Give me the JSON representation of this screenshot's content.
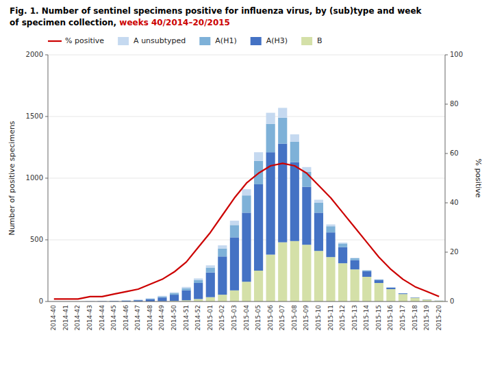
{
  "chart_data": {
    "type": "bar",
    "title": [
      "Fig. 1. Number of sentinel specimens positive for influenza virus, by (sub)type and week",
      "of specimen collection, ",
      "weeks 40/2014–20/2015"
    ],
    "categories": [
      "2014-40",
      "2014-41",
      "2014-42",
      "2014-43",
      "2014-44",
      "2014-45",
      "2014-46",
      "2014-47",
      "2014-48",
      "2014-49",
      "2014-50",
      "2014-51",
      "2014-52",
      "2015-01",
      "2015-02",
      "2015-03",
      "2015-04",
      "2015-05",
      "2015-06",
      "2015-07",
      "2015-08",
      "2015-09",
      "2015-10",
      "2015-11",
      "2015-12",
      "2015-13",
      "2015-14",
      "2015-15",
      "2015-16",
      "2015-17",
      "2015-18",
      "2015-19",
      "2015-20"
    ],
    "series": [
      {
        "name": "% positive",
        "type": "line",
        "axis": "y2",
        "color": "#cc0000",
        "values": [
          1,
          1,
          1,
          2,
          2,
          3,
          4,
          5,
          7,
          9,
          12,
          16,
          22,
          28,
          35,
          42,
          48,
          52,
          55,
          56,
          55,
          52,
          47,
          42,
          36,
          30,
          24,
          18,
          13,
          9,
          6,
          4,
          2
        ]
      },
      {
        "name": "A unsubtyped",
        "type": "bar",
        "color": "#c5d9f0",
        "values": [
          0,
          0,
          0,
          0,
          0,
          0,
          1,
          2,
          4,
          6,
          8,
          10,
          12,
          18,
          25,
          35,
          50,
          70,
          90,
          80,
          60,
          40,
          25,
          15,
          8,
          4,
          2,
          1,
          0,
          0,
          0,
          0,
          0
        ]
      },
      {
        "name": "A(H1)",
        "type": "bar",
        "color": "#7eb1d8",
        "values": [
          0,
          0,
          0,
          0,
          1,
          1,
          2,
          3,
          5,
          8,
          12,
          18,
          25,
          40,
          65,
          100,
          140,
          190,
          230,
          210,
          165,
          120,
          80,
          50,
          30,
          15,
          8,
          4,
          2,
          1,
          0,
          0,
          0
        ]
      },
      {
        "name": "A(H3)",
        "type": "bar",
        "color": "#4472c4",
        "values": [
          0,
          0,
          0,
          1,
          2,
          4,
          6,
          10,
          18,
          30,
          50,
          80,
          130,
          200,
          310,
          430,
          560,
          700,
          830,
          800,
          640,
          470,
          310,
          200,
          130,
          75,
          45,
          25,
          12,
          6,
          3,
          2,
          1
        ]
      },
      {
        "name": "B",
        "type": "bar",
        "color": "#d4e0a8",
        "values": [
          0,
          0,
          0,
          0,
          0,
          0,
          0,
          0,
          0,
          2,
          5,
          10,
          20,
          35,
          55,
          90,
          160,
          250,
          380,
          480,
          490,
          460,
          410,
          360,
          310,
          260,
          200,
          150,
          100,
          60,
          30,
          15,
          6
        ]
      }
    ],
    "stacked": true,
    "ylabel": "Number of positive specimens",
    "y2label": "% positive",
    "ylim": [
      0,
      2000
    ],
    "yticks": [
      0,
      500,
      1000,
      1500,
      2000
    ],
    "y2lim": [
      0,
      100
    ],
    "y2ticks": [
      0,
      20,
      40,
      60,
      80,
      100
    ],
    "grid": true,
    "legend": "top"
  }
}
